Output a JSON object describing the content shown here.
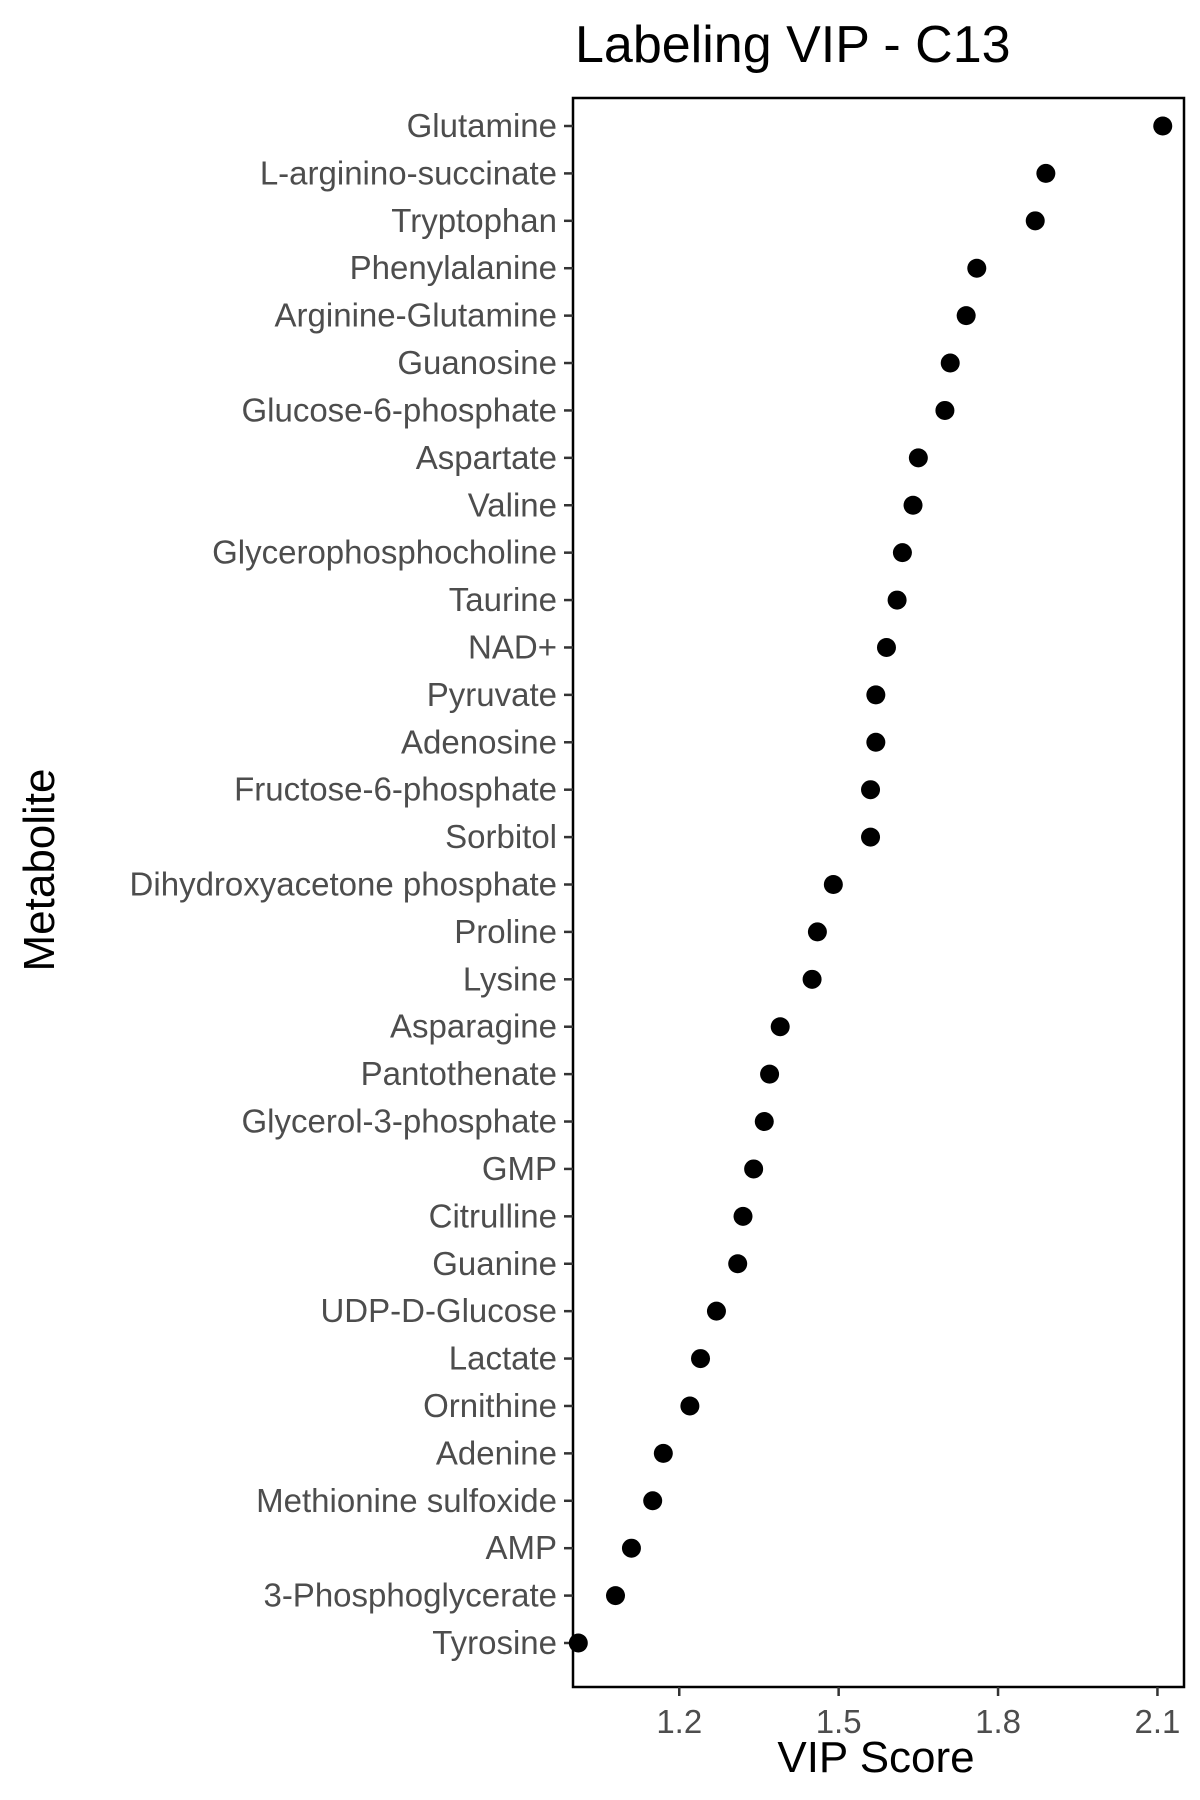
{
  "chart_data": {
    "type": "scatter",
    "title": "Labeling VIP - C13",
    "xlabel": "VIP Score",
    "ylabel": "Metabolite",
    "xlim": [
      1.0,
      2.15
    ],
    "x_ticks": [
      1.2,
      1.5,
      1.8,
      2.1
    ],
    "x_tick_labels": [
      "1.2",
      "1.5",
      "1.8",
      "2.1"
    ],
    "grid": false,
    "legend": "none",
    "point_color": "#000000",
    "points": [
      {
        "label": "Glutamine",
        "value": 2.11
      },
      {
        "label": "L-arginino-succinate",
        "value": 1.89
      },
      {
        "label": "Tryptophan",
        "value": 1.87
      },
      {
        "label": "Phenylalanine",
        "value": 1.76
      },
      {
        "label": "Arginine-Glutamine",
        "value": 1.74
      },
      {
        "label": "Guanosine",
        "value": 1.71
      },
      {
        "label": "Glucose-6-phosphate",
        "value": 1.7
      },
      {
        "label": "Aspartate",
        "value": 1.65
      },
      {
        "label": "Valine",
        "value": 1.64
      },
      {
        "label": "Glycerophosphocholine",
        "value": 1.62
      },
      {
        "label": "Taurine",
        "value": 1.61
      },
      {
        "label": "NAD+",
        "value": 1.59
      },
      {
        "label": "Pyruvate",
        "value": 1.57
      },
      {
        "label": "Adenosine",
        "value": 1.57
      },
      {
        "label": "Fructose-6-phosphate",
        "value": 1.56
      },
      {
        "label": "Sorbitol",
        "value": 1.56
      },
      {
        "label": "Dihydroxyacetone phosphate",
        "value": 1.49
      },
      {
        "label": "Proline",
        "value": 1.46
      },
      {
        "label": "Lysine",
        "value": 1.45
      },
      {
        "label": "Asparagine",
        "value": 1.39
      },
      {
        "label": "Pantothenate",
        "value": 1.37
      },
      {
        "label": "Glycerol-3-phosphate",
        "value": 1.36
      },
      {
        "label": "GMP",
        "value": 1.34
      },
      {
        "label": "Citrulline",
        "value": 1.32
      },
      {
        "label": "Guanine",
        "value": 1.31
      },
      {
        "label": "UDP-D-Glucose",
        "value": 1.27
      },
      {
        "label": "Lactate",
        "value": 1.24
      },
      {
        "label": "Ornithine",
        "value": 1.22
      },
      {
        "label": "Adenine",
        "value": 1.17
      },
      {
        "label": "Methionine sulfoxide",
        "value": 1.15
      },
      {
        "label": "AMP",
        "value": 1.11
      },
      {
        "label": "3-Phosphoglycerate",
        "value": 1.08
      },
      {
        "label": "Tyrosine",
        "value": 1.01
      }
    ]
  }
}
